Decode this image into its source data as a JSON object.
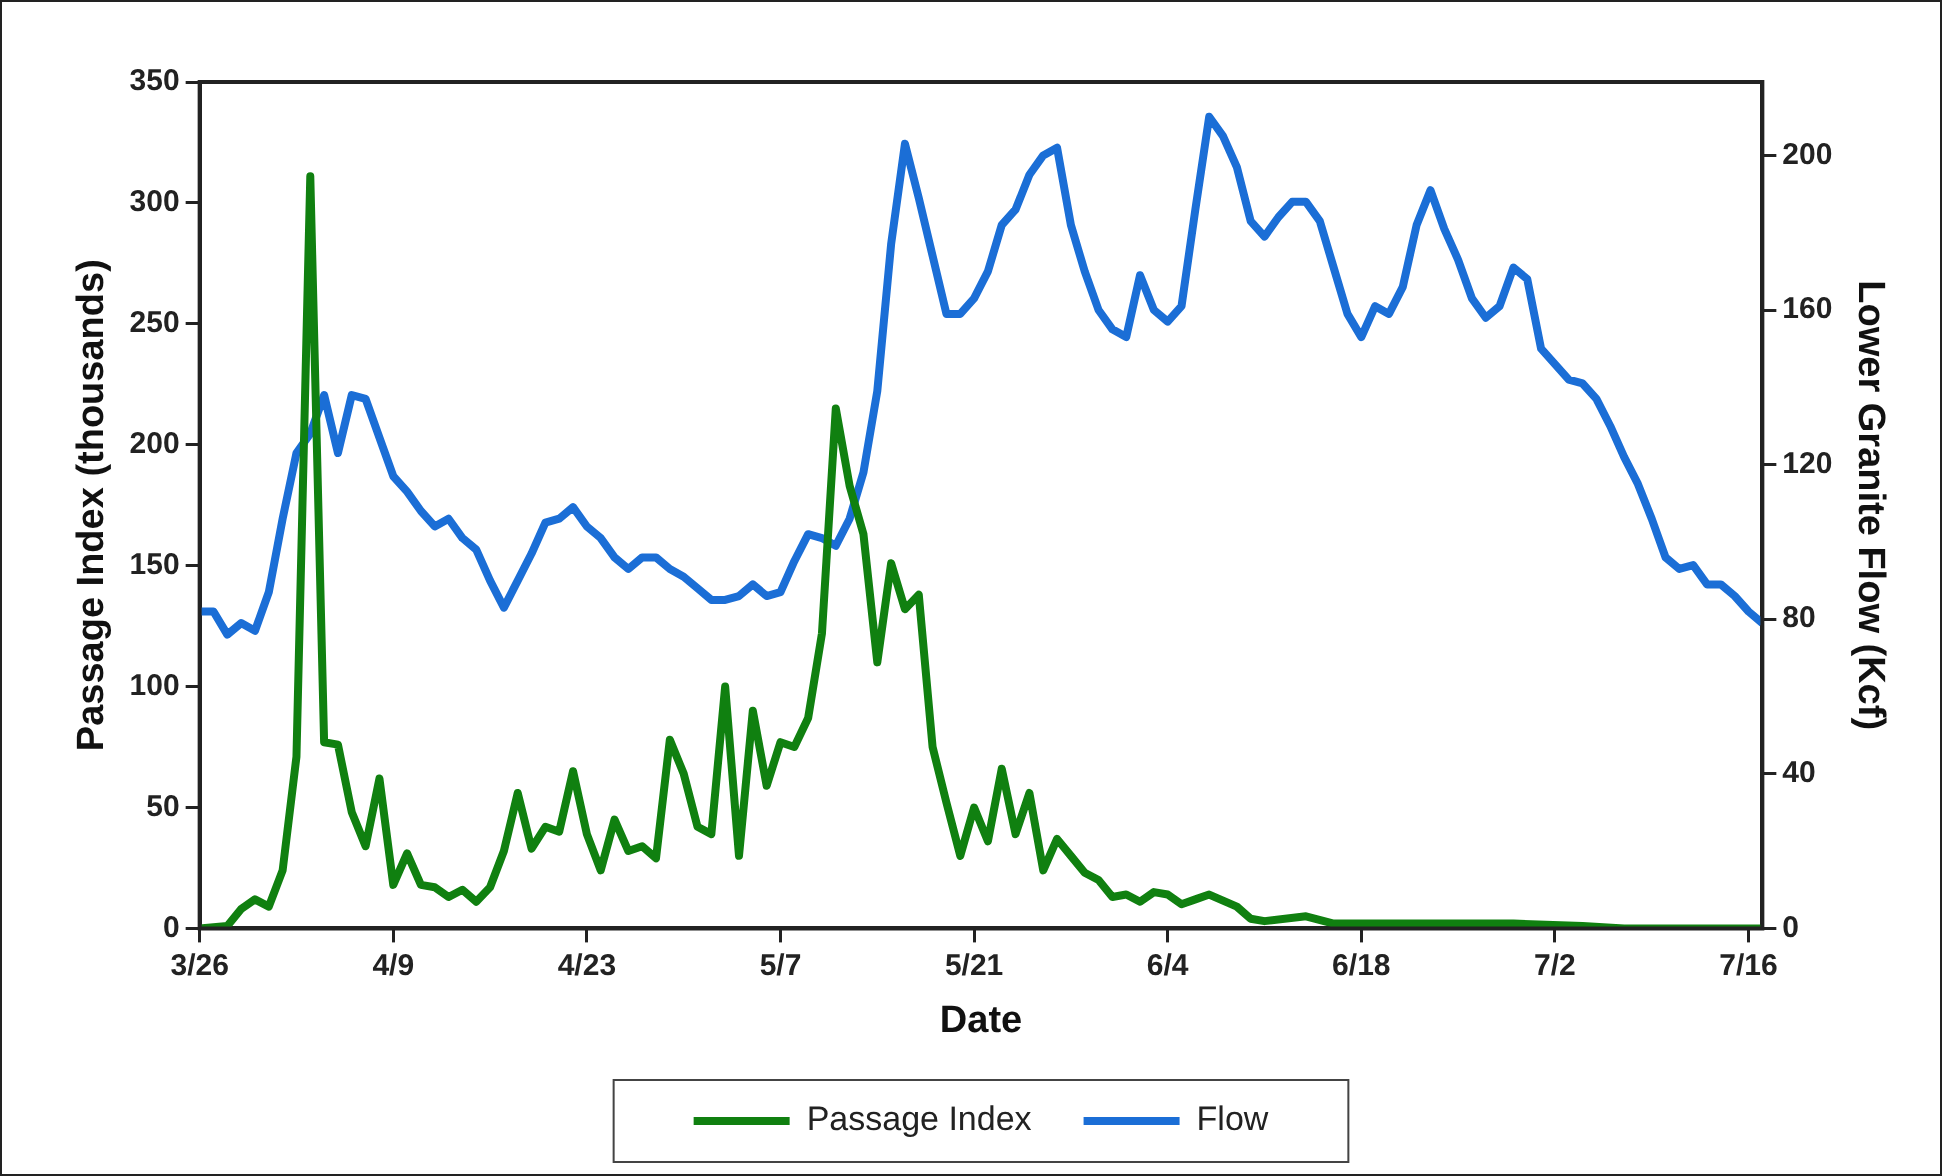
{
  "chart_data": {
    "type": "line",
    "xlabel": "Date",
    "ylabel": "Passage Index (thousands)",
    "y2label": "Lower Granite Flow (Kcf)",
    "xlim": [
      "--03-26",
      "--07-17"
    ],
    "xticks": [
      {
        "value": "--03-26",
        "label": "3/26"
      },
      {
        "value": "--04-09",
        "label": "4/9"
      },
      {
        "value": "--04-23",
        "label": "4/23"
      },
      {
        "value": "--05-07",
        "label": "5/7"
      },
      {
        "value": "--05-21",
        "label": "5/21"
      },
      {
        "value": "--06-04",
        "label": "6/4"
      },
      {
        "value": "--06-18",
        "label": "6/18"
      },
      {
        "value": "--07-02",
        "label": "7/2"
      },
      {
        "value": "--07-16",
        "label": "7/16"
      }
    ],
    "ylim": [
      0,
      350
    ],
    "yticks": [
      0,
      50,
      100,
      150,
      200,
      250,
      300,
      350
    ],
    "y2lim": [
      0,
      219
    ],
    "y2ticks": [
      0,
      40,
      80,
      120,
      160,
      200
    ],
    "legend": "bottom",
    "series": [
      {
        "name": "Passage Index",
        "color": "#108010",
        "x": [
          "--03-26",
          "--03-28",
          "--03-29",
          "--03-30",
          "--03-31",
          "--04-01",
          "--04-02",
          "--04-03",
          "--04-04",
          "--04-05",
          "--04-06",
          "--04-07",
          "--04-08",
          "--04-09",
          "--04-10",
          "--04-11",
          "--04-12",
          "--04-13",
          "--04-14",
          "--04-15",
          "--04-16",
          "--04-17",
          "--04-18",
          "--04-19",
          "--04-20",
          "--04-21",
          "--04-22",
          "--04-23",
          "--04-24",
          "--04-25",
          "--04-26",
          "--04-27",
          "--04-28",
          "--04-29",
          "--04-30",
          "--05-01",
          "--05-02",
          "--05-03",
          "--05-04",
          "--05-05",
          "--05-06",
          "--05-07",
          "--05-08",
          "--05-09",
          "--05-10",
          "--05-11",
          "--05-12",
          "--05-13",
          "--05-14",
          "--05-15",
          "--05-16",
          "--05-17",
          "--05-18",
          "--05-19",
          "--05-20",
          "--05-21",
          "--05-22",
          "--05-23",
          "--05-24",
          "--05-25",
          "--05-26",
          "--05-27",
          "--05-28",
          "--05-29",
          "--05-30",
          "--05-31",
          "--06-01",
          "--06-02",
          "--06-03",
          "--06-04",
          "--06-05",
          "--06-06",
          "--06-07",
          "--06-09",
          "--06-10",
          "--06-11",
          "--06-14",
          "--06-16",
          "--06-20",
          "--06-24",
          "--06-29",
          "--07-04",
          "--07-07",
          "--07-17"
        ],
        "values": [
          0,
          1,
          8,
          12,
          9,
          24,
          71,
          311,
          77,
          76,
          48,
          34,
          62,
          18,
          31,
          18,
          17,
          13,
          16,
          11,
          17,
          32,
          56,
          33,
          42,
          40,
          65,
          39,
          24,
          45,
          32,
          34,
          29,
          78,
          64,
          42,
          39,
          100,
          30,
          90,
          59,
          77,
          75,
          87,
          122,
          215,
          183,
          163,
          110,
          151,
          132,
          138,
          75,
          52,
          30,
          50,
          36,
          66,
          39,
          56,
          24,
          37,
          30,
          23,
          20,
          13,
          14,
          11,
          15,
          14,
          10,
          12,
          14,
          9,
          4,
          3,
          5,
          2,
          2,
          2,
          2,
          1,
          0,
          0
        ]
      },
      {
        "name": "Flow",
        "color": "#1b6ed6",
        "axis": "y2",
        "x": [
          "--03-26",
          "--03-27",
          "--03-28",
          "--03-29",
          "--03-30",
          "--03-31",
          "--04-01",
          "--04-02",
          "--04-03",
          "--04-04",
          "--04-05",
          "--04-06",
          "--04-07",
          "--04-08",
          "--04-09",
          "--04-10",
          "--04-11",
          "--04-12",
          "--04-13",
          "--04-14",
          "--04-15",
          "--04-16",
          "--04-17",
          "--04-18",
          "--04-19",
          "--04-20",
          "--04-21",
          "--04-22",
          "--04-23",
          "--04-24",
          "--04-25",
          "--04-26",
          "--04-27",
          "--04-28",
          "--04-29",
          "--04-30",
          "--05-01",
          "--05-02",
          "--05-03",
          "--05-04",
          "--05-05",
          "--05-06",
          "--05-07",
          "--05-08",
          "--05-09",
          "--05-10",
          "--05-11",
          "--05-12",
          "--05-13",
          "--05-14",
          "--05-15",
          "--05-16",
          "--05-17",
          "--05-18",
          "--05-19",
          "--05-20",
          "--05-21",
          "--05-22",
          "--05-23",
          "--05-24",
          "--05-25",
          "--05-26",
          "--05-27",
          "--05-28",
          "--05-29",
          "--05-30",
          "--05-31",
          "--06-01",
          "--06-02",
          "--06-03",
          "--06-04",
          "--06-05",
          "--06-06",
          "--06-07",
          "--06-08",
          "--06-09",
          "--06-10",
          "--06-11",
          "--06-12",
          "--06-13",
          "--06-14",
          "--06-15",
          "--06-16",
          "--06-17",
          "--06-18",
          "--06-19",
          "--06-20",
          "--06-21",
          "--06-22",
          "--06-23",
          "--06-24",
          "--06-25",
          "--06-26",
          "--06-27",
          "--06-28",
          "--06-29",
          "--06-30",
          "--07-01",
          "--07-02",
          "--07-03",
          "--07-04",
          "--07-05",
          "--07-06",
          "--07-07",
          "--07-08",
          "--07-09",
          "--07-10",
          "--07-11",
          "--07-12",
          "--07-13",
          "--07-14",
          "--07-15",
          "--07-16",
          "--07-17"
        ],
        "values": [
          82,
          82,
          76,
          79,
          77,
          87,
          106,
          123,
          128,
          138,
          123,
          138,
          137,
          127,
          117,
          113,
          108,
          104,
          106,
          101,
          98,
          90,
          83,
          90,
          97,
          105,
          106,
          109,
          104,
          101,
          96,
          93,
          96,
          96,
          93,
          91,
          88,
          85,
          85,
          86,
          89,
          86,
          87,
          95,
          102,
          101,
          99,
          106,
          118,
          139,
          177,
          203,
          189,
          174,
          159,
          159,
          163,
          170,
          182,
          186,
          195,
          200,
          202,
          182,
          170,
          160,
          155,
          153,
          169,
          160,
          157,
          161,
          186,
          210,
          205,
          197,
          183,
          179,
          184,
          188,
          188,
          183,
          171,
          159,
          153,
          161,
          159,
          166,
          182,
          191,
          181,
          173,
          163,
          158,
          161,
          171,
          168,
          150,
          146,
          142,
          141,
          137,
          130,
          122,
          115,
          106,
          96,
          93,
          94,
          89,
          89,
          86,
          82,
          79
        ]
      }
    ]
  }
}
